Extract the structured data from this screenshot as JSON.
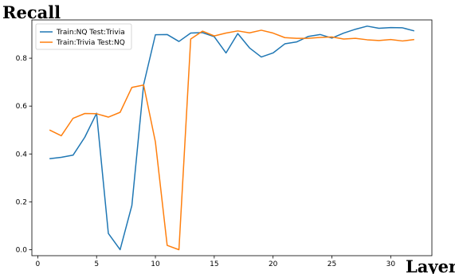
{
  "chart_data": {
    "type": "line",
    "title": "",
    "ylabel": "Recall",
    "xlabel": "Layer",
    "xlim": [
      -0.5,
      33.5
    ],
    "ylim": [
      -0.025,
      0.96
    ],
    "xticks": [
      0,
      5,
      10,
      15,
      20,
      25,
      30
    ],
    "yticks": [
      0.0,
      0.2,
      0.4,
      0.6,
      0.8
    ],
    "ytick_labels": [
      "0.0",
      "0.2",
      "0.4",
      "0.6",
      "0.8"
    ],
    "grid": false,
    "legend_position": "top-left",
    "x": [
      1,
      2,
      3,
      4,
      5,
      6,
      7,
      8,
      9,
      10,
      11,
      12,
      13,
      14,
      15,
      16,
      17,
      18,
      19,
      20,
      21,
      22,
      23,
      24,
      25,
      26,
      27,
      28,
      29,
      30,
      31,
      32
    ],
    "series": [
      {
        "name": "Train:NQ Test:Trivia",
        "color": "#1f77b4",
        "values": [
          0.38,
          0.386,
          0.395,
          0.47,
          0.57,
          0.068,
          0.0,
          0.185,
          0.69,
          0.898,
          0.899,
          0.87,
          0.905,
          0.907,
          0.89,
          0.822,
          0.903,
          0.843,
          0.805,
          0.822,
          0.86,
          0.868,
          0.891,
          0.899,
          0.884,
          0.905,
          0.921,
          0.934,
          0.925,
          0.928,
          0.927,
          0.914
        ]
      },
      {
        "name": "Train:Trivia Test:NQ",
        "color": "#ff7f0e",
        "values": [
          0.5,
          0.476,
          0.549,
          0.569,
          0.568,
          0.554,
          0.574,
          0.678,
          0.688,
          0.45,
          0.018,
          0.0,
          0.88,
          0.913,
          0.893,
          0.905,
          0.914,
          0.906,
          0.917,
          0.905,
          0.886,
          0.883,
          0.883,
          0.887,
          0.889,
          0.88,
          0.883,
          0.877,
          0.874,
          0.878,
          0.872,
          0.878
        ]
      }
    ]
  }
}
